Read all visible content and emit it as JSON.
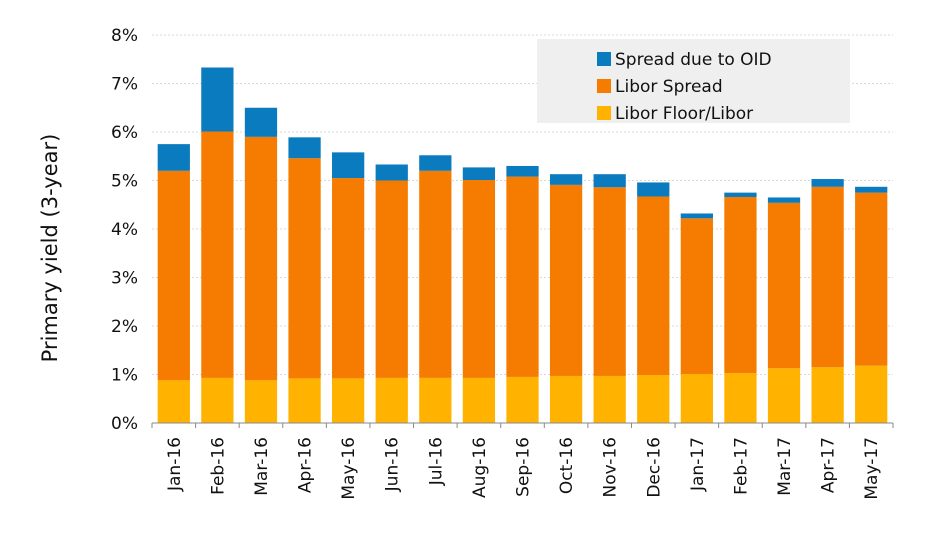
{
  "chart_data": {
    "type": "bar",
    "stacked": true,
    "ylabel": "Primary yield (3-year)",
    "yticks": [
      "0%",
      "1%",
      "2%",
      "3%",
      "4%",
      "5%",
      "6%",
      "7%",
      "8%"
    ],
    "ylim": [
      0,
      8
    ],
    "grid": true,
    "legend_position": "top-right",
    "categories": [
      "Jan-16",
      "Feb-16",
      "Mar-16",
      "Apr-16",
      "May-16",
      "Jun-16",
      "Jul-16",
      "Aug-16",
      "Sep-16",
      "Oct-16",
      "Nov-16",
      "Dec-16",
      "Jan-17",
      "Feb-17",
      "Mar-17",
      "Apr-17",
      "May-17"
    ],
    "series": [
      {
        "name": "Libor Floor/Libor",
        "color": "#ffb300",
        "values": [
          0.88,
          0.93,
          0.88,
          0.92,
          0.92,
          0.93,
          0.93,
          0.93,
          0.95,
          0.97,
          0.97,
          0.99,
          1.01,
          1.03,
          1.13,
          1.15,
          1.18
        ]
      },
      {
        "name": "Libor Spread",
        "color": "#f57c00",
        "values": [
          4.32,
          5.08,
          5.02,
          4.54,
          4.13,
          4.07,
          4.27,
          4.08,
          4.13,
          3.94,
          3.89,
          3.68,
          3.21,
          3.63,
          3.41,
          3.72,
          3.57
        ]
      },
      {
        "name": "Spread due to OID",
        "color": "#0a7bbf",
        "values": [
          0.55,
          1.32,
          0.6,
          0.43,
          0.53,
          0.33,
          0.32,
          0.26,
          0.22,
          0.22,
          0.27,
          0.29,
          0.1,
          0.09,
          0.11,
          0.16,
          0.12
        ]
      }
    ],
    "legend_order": [
      "Spread due to OID",
      "Libor Spread",
      "Libor Floor/Libor"
    ]
  }
}
